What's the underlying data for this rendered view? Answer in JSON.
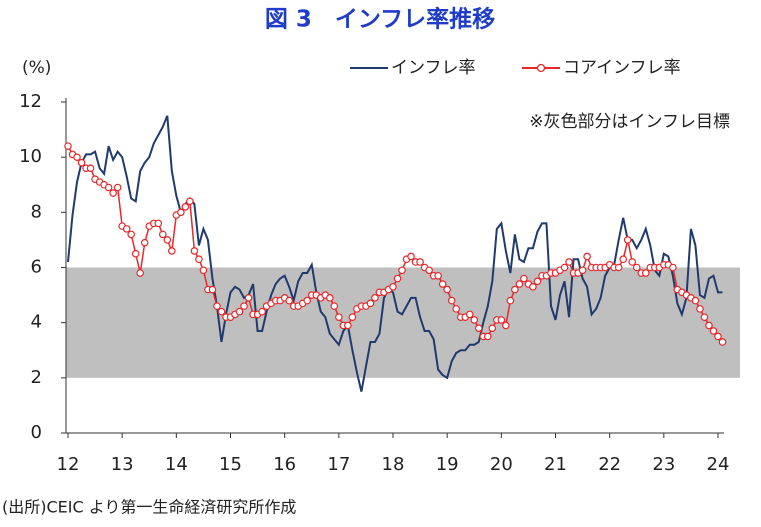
{
  "chart_data": {
    "type": "line",
    "title": "図 3　インフレ率推移",
    "y_unit": "(%)",
    "annotation": "※灰色部分はインフレ目標",
    "source": "(出所)CEIC より第一生命経済研究所作成",
    "target_band": [
      2,
      6
    ],
    "target_color": "#bfbfbf",
    "ylim": [
      0,
      12
    ],
    "yticks": [
      0,
      2,
      4,
      6,
      8,
      10,
      12
    ],
    "categories": [
      "12",
      null,
      null,
      null,
      null,
      null,
      null,
      null,
      null,
      null,
      null,
      null,
      "13",
      null,
      null,
      null,
      null,
      null,
      null,
      null,
      null,
      null,
      null,
      null,
      "14",
      null,
      null,
      null,
      null,
      null,
      null,
      null,
      null,
      null,
      null,
      null,
      "15",
      null,
      null,
      null,
      null,
      null,
      null,
      null,
      null,
      null,
      null,
      null,
      "16",
      null,
      null,
      null,
      null,
      null,
      null,
      null,
      null,
      null,
      null,
      null,
      "17",
      null,
      null,
      null,
      null,
      null,
      null,
      null,
      null,
      null,
      null,
      null,
      "18",
      null,
      null,
      null,
      null,
      null,
      null,
      null,
      null,
      null,
      null,
      null,
      "19",
      null,
      null,
      null,
      null,
      null,
      null,
      null,
      null,
      null,
      null,
      null,
      "20",
      null,
      null,
      null,
      null,
      null,
      null,
      null,
      null,
      null,
      null,
      null,
      "21",
      null,
      null,
      null,
      null,
      null,
      null,
      null,
      null,
      null,
      null,
      null,
      "22",
      null,
      null,
      null,
      null,
      null,
      null,
      null,
      null,
      null,
      null,
      null,
      "23",
      null,
      null,
      null,
      null,
      null,
      null,
      null,
      null,
      null,
      null,
      null,
      "24",
      null
    ],
    "series": [
      {
        "name": "インフレ率",
        "color": "#1f3a6e",
        "markers": false,
        "values": [
          6.2,
          7.9,
          9.1,
          9.8,
          10.1,
          10.1,
          10.2,
          9.6,
          9.4,
          10.4,
          9.9,
          10.2,
          10.0,
          9.3,
          8.5,
          8.4,
          9.5,
          9.8,
          10.0,
          10.5,
          10.8,
          11.1,
          11.5,
          9.5,
          8.6,
          8.0,
          8.3,
          8.5,
          8.3,
          6.8,
          7.4,
          7.0,
          5.6,
          4.6,
          3.3,
          4.3,
          5.1,
          5.3,
          5.2,
          4.9,
          5.0,
          5.4,
          3.7,
          3.7,
          4.4,
          5.0,
          5.4,
          5.6,
          5.7,
          5.3,
          4.8,
          5.5,
          5.8,
          5.8,
          6.1,
          5.1,
          4.4,
          4.2,
          3.6,
          3.4,
          3.2,
          3.7,
          3.9,
          3.0,
          2.2,
          1.5,
          2.4,
          3.3,
          3.3,
          3.6,
          4.9,
          5.2,
          5.1,
          4.4,
          4.3,
          4.6,
          4.9,
          4.9,
          4.2,
          3.7,
          3.7,
          3.4,
          2.3,
          2.1,
          2.0,
          2.6,
          2.9,
          3.0,
          3.0,
          3.2,
          3.2,
          3.3,
          4.0,
          4.6,
          5.5,
          7.4,
          7.6,
          6.6,
          5.8,
          7.2,
          6.3,
          6.2,
          6.7,
          6.7,
          7.3,
          7.6,
          7.6,
          4.6,
          4.1,
          5.0,
          5.5,
          4.2,
          6.3,
          6.3,
          5.6,
          5.3,
          4.3,
          4.5,
          4.9,
          5.7,
          6.0,
          6.1,
          7.0,
          7.8,
          7.0,
          7.0,
          6.7,
          7.0,
          7.4,
          6.8,
          5.9,
          5.7,
          6.5,
          6.4,
          5.7,
          4.7,
          4.3,
          4.9,
          7.4,
          6.8,
          5.0,
          4.9,
          5.6,
          5.7,
          5.1,
          5.1
        ]
      },
      {
        "name": "コアインフレ率",
        "color": "#e8282b",
        "markers": true,
        "values": [
          10.4,
          10.1,
          10.0,
          9.8,
          9.6,
          9.6,
          9.2,
          9.1,
          9.0,
          8.9,
          8.7,
          8.9,
          7.5,
          7.4,
          7.2,
          6.5,
          5.8,
          6.9,
          7.5,
          7.6,
          7.6,
          7.2,
          7.0,
          6.6,
          7.9,
          8.0,
          8.2,
          8.4,
          6.6,
          6.3,
          5.9,
          5.2,
          5.2,
          4.6,
          4.4,
          4.2,
          4.2,
          4.3,
          4.4,
          4.6,
          4.9,
          4.3,
          4.3,
          4.4,
          4.6,
          4.7,
          4.8,
          4.8,
          4.9,
          4.8,
          4.6,
          4.6,
          4.7,
          4.8,
          5.0,
          5.0,
          4.9,
          5.0,
          4.9,
          4.6,
          4.2,
          3.9,
          3.9,
          4.2,
          4.5,
          4.6,
          4.6,
          4.7,
          4.9,
          5.1,
          5.1,
          5.2,
          5.3,
          5.6,
          5.9,
          6.3,
          6.4,
          6.2,
          6.2,
          6.0,
          5.9,
          5.7,
          5.7,
          5.4,
          5.2,
          4.8,
          4.5,
          4.2,
          4.2,
          4.3,
          4.1,
          3.8,
          3.5,
          3.5,
          3.8,
          4.1,
          4.1,
          3.9,
          4.8,
          5.2,
          5.4,
          5.6,
          5.4,
          5.3,
          5.5,
          5.7,
          5.7,
          5.8,
          5.8,
          5.9,
          6.0,
          6.2,
          5.8,
          5.8,
          5.9,
          6.4,
          6.0,
          6.0,
          6.0,
          6.0,
          6.1,
          6.0,
          6.0,
          6.3,
          7.0,
          6.2,
          6.0,
          5.8,
          5.8,
          6.0,
          6.0,
          6.0,
          6.1,
          6.1,
          6.0,
          5.2,
          5.1,
          5.0,
          4.9,
          4.8,
          4.5,
          4.2,
          3.9,
          3.7,
          3.5,
          3.3
        ]
      }
    ]
  }
}
